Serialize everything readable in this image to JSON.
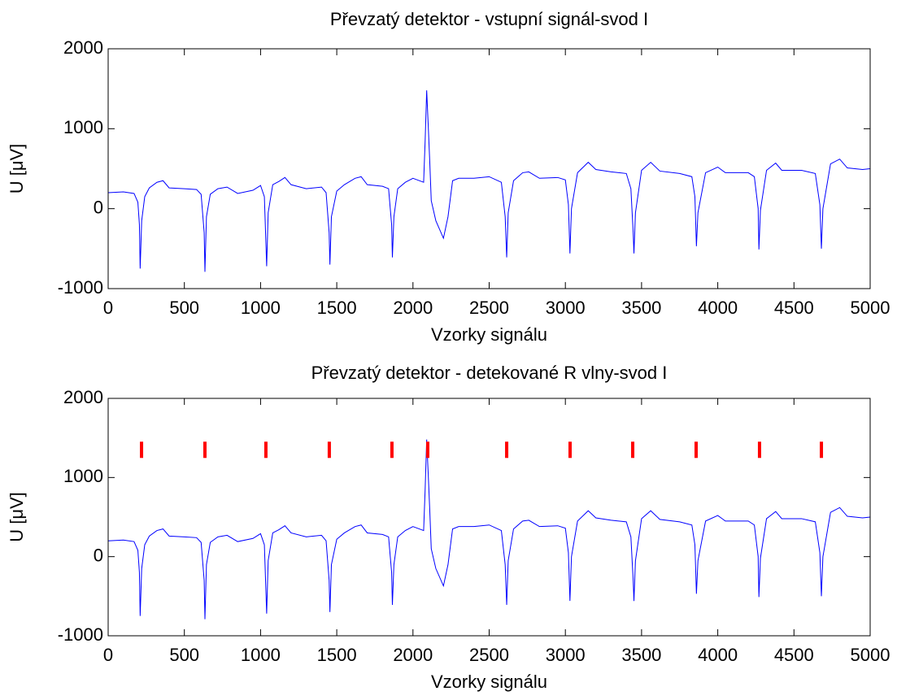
{
  "chart_data": [
    {
      "type": "line",
      "title": "Převzatý detektor - vstupní signál-svod I",
      "xlabel": "Vzorky signálu",
      "ylabel": "U [μV]",
      "x": [
        0,
        100,
        170,
        195,
        205,
        210,
        220,
        240,
        270,
        320,
        360,
        400,
        500,
        580,
        610,
        630,
        635,
        645,
        670,
        720,
        780,
        850,
        950,
        1000,
        1025,
        1040,
        1050,
        1080,
        1120,
        1160,
        1200,
        1300,
        1400,
        1430,
        1450,
        1455,
        1465,
        1500,
        1550,
        1620,
        1660,
        1700,
        1800,
        1840,
        1860,
        1865,
        1875,
        1900,
        1950,
        2000,
        2070,
        2080,
        2090,
        2100,
        2110,
        2120,
        2150,
        2200,
        2230,
        2260,
        2300,
        2400,
        2500,
        2580,
        2605,
        2615,
        2625,
        2660,
        2720,
        2760,
        2830,
        2950,
        3000,
        3020,
        3030,
        3040,
        3080,
        3150,
        3200,
        3300,
        3400,
        3430,
        3445,
        3450,
        3460,
        3500,
        3560,
        3620,
        3750,
        3830,
        3850,
        3860,
        3870,
        3920,
        4000,
        4050,
        4200,
        4240,
        4265,
        4270,
        4280,
        4320,
        4380,
        4420,
        4550,
        4640,
        4670,
        4680,
        4690,
        4740,
        4800,
        4850,
        4950,
        5000
      ],
      "series": [
        {
          "color": "#0000ff",
          "values": [
            200,
            210,
            190,
            80,
            -200,
            -750,
            -150,
            150,
            260,
            330,
            350,
            260,
            250,
            240,
            180,
            -300,
            -790,
            -100,
            180,
            250,
            270,
            190,
            230,
            290,
            150,
            -720,
            -50,
            300,
            340,
            390,
            300,
            250,
            270,
            200,
            -300,
            -700,
            -100,
            220,
            300,
            380,
            400,
            300,
            280,
            250,
            -200,
            -610,
            -100,
            250,
            330,
            380,
            330,
            850,
            1480,
            1050,
            600,
            100,
            -150,
            -370,
            -100,
            350,
            380,
            380,
            400,
            330,
            -100,
            -610,
            -50,
            350,
            450,
            460,
            380,
            390,
            360,
            50,
            -560,
            0,
            450,
            580,
            490,
            460,
            440,
            250,
            -300,
            -560,
            -50,
            480,
            580,
            470,
            440,
            400,
            150,
            -470,
            -50,
            450,
            520,
            450,
            450,
            400,
            0,
            -510,
            -20,
            480,
            570,
            480,
            480,
            440,
            50,
            -500,
            0,
            560,
            620,
            510,
            490,
            500
          ]
        }
      ],
      "xlim": [
        0,
        5000
      ],
      "ylim": [
        -1000,
        2000
      ],
      "xticks": [
        0,
        500,
        1000,
        1500,
        2000,
        2500,
        3000,
        3500,
        4000,
        4500,
        5000
      ],
      "yticks": [
        -1000,
        0,
        1000,
        2000
      ]
    },
    {
      "type": "line",
      "title": "Převzatý detektor - detekované R vlny-svod I",
      "xlabel": "Vzorky signálu",
      "ylabel": "U [μV]",
      "x": [
        0,
        100,
        170,
        195,
        205,
        210,
        220,
        240,
        270,
        320,
        360,
        400,
        500,
        580,
        610,
        630,
        635,
        645,
        670,
        720,
        780,
        850,
        950,
        1000,
        1025,
        1040,
        1050,
        1080,
        1120,
        1160,
        1200,
        1300,
        1400,
        1430,
        1450,
        1455,
        1465,
        1500,
        1550,
        1620,
        1660,
        1700,
        1800,
        1840,
        1860,
        1865,
        1875,
        1900,
        1950,
        2000,
        2070,
        2080,
        2090,
        2100,
        2110,
        2120,
        2150,
        2200,
        2230,
        2260,
        2300,
        2400,
        2500,
        2580,
        2605,
        2615,
        2625,
        2660,
        2720,
        2760,
        2830,
        2950,
        3000,
        3020,
        3030,
        3040,
        3080,
        3150,
        3200,
        3300,
        3400,
        3430,
        3445,
        3450,
        3460,
        3500,
        3560,
        3620,
        3750,
        3830,
        3850,
        3860,
        3870,
        3920,
        4000,
        4050,
        4200,
        4240,
        4265,
        4270,
        4280,
        4320,
        4380,
        4420,
        4550,
        4640,
        4670,
        4680,
        4690,
        4740,
        4800,
        4850,
        4950,
        5000
      ],
      "series": [
        {
          "color": "#0000ff",
          "values": [
            200,
            210,
            190,
            80,
            -200,
            -750,
            -150,
            150,
            260,
            330,
            350,
            260,
            250,
            240,
            180,
            -300,
            -790,
            -100,
            180,
            250,
            270,
            190,
            230,
            290,
            150,
            -720,
            -50,
            300,
            340,
            390,
            300,
            250,
            270,
            200,
            -300,
            -700,
            -100,
            220,
            300,
            380,
            400,
            300,
            280,
            250,
            -200,
            -610,
            -100,
            250,
            330,
            380,
            330,
            850,
            1480,
            1050,
            600,
            100,
            -150,
            -370,
            -100,
            350,
            380,
            380,
            400,
            330,
            -100,
            -610,
            -50,
            350,
            450,
            460,
            380,
            390,
            360,
            50,
            -560,
            0,
            450,
            580,
            490,
            460,
            440,
            250,
            -300,
            -560,
            -50,
            480,
            580,
            470,
            440,
            400,
            150,
            -470,
            -50,
            450,
            520,
            450,
            450,
            400,
            0,
            -510,
            -20,
            480,
            570,
            480,
            480,
            440,
            50,
            -500,
            0,
            560,
            620,
            510,
            490,
            500
          ]
        }
      ],
      "markers": {
        "color": "#ff0000",
        "x": [
          219,
          635,
          1035,
          1451,
          1862,
          2097,
          2615,
          3031,
          3442,
          3858,
          4274,
          4680
        ],
        "values": [
          1350,
          1350,
          1350,
          1350,
          1350,
          1350,
          1350,
          1350,
          1350,
          1350,
          1350,
          1350
        ]
      },
      "xlim": [
        0,
        5000
      ],
      "ylim": [
        -1000,
        2000
      ],
      "xticks": [
        0,
        500,
        1000,
        1500,
        2000,
        2500,
        3000,
        3500,
        4000,
        4500,
        5000
      ],
      "yticks": [
        -1000,
        0,
        1000,
        2000
      ]
    }
  ]
}
